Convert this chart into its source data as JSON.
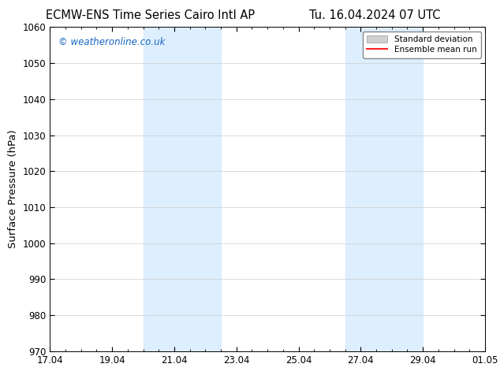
{
  "title_left": "ECMW-ENS Time Series Cairo Intl AP",
  "title_right": "Tu. 16.04.2024 07 UTC",
  "ylabel": "Surface Pressure (hPa)",
  "ylim": [
    970,
    1060
  ],
  "yticks": [
    970,
    980,
    990,
    1000,
    1010,
    1020,
    1030,
    1040,
    1050,
    1060
  ],
  "xtick_labels": [
    "17.04",
    "19.04",
    "21.04",
    "23.04",
    "25.04",
    "27.04",
    "29.04",
    "01.05"
  ],
  "xtick_positions_days": [
    0,
    2,
    4,
    6,
    8,
    10,
    12,
    14
  ],
  "shaded_bands": [
    {
      "start_day": 3.0,
      "end_day": 5.5
    },
    {
      "start_day": 9.5,
      "end_day": 12.0
    }
  ],
  "shaded_color": "#ddeeff",
  "watermark": "© weatheronline.co.uk",
  "watermark_color": "#1565C0",
  "background_color": "#ffffff",
  "axis_background": "#ffffff",
  "legend_std_label": "Standard deviation",
  "legend_ens_label": "Ensemble mean run",
  "legend_std_color": "#d0d0d0",
  "legend_ens_color": "#ff2222",
  "title_fontsize": 10.5,
  "tick_fontsize": 8.5,
  "ylabel_fontsize": 9.5
}
